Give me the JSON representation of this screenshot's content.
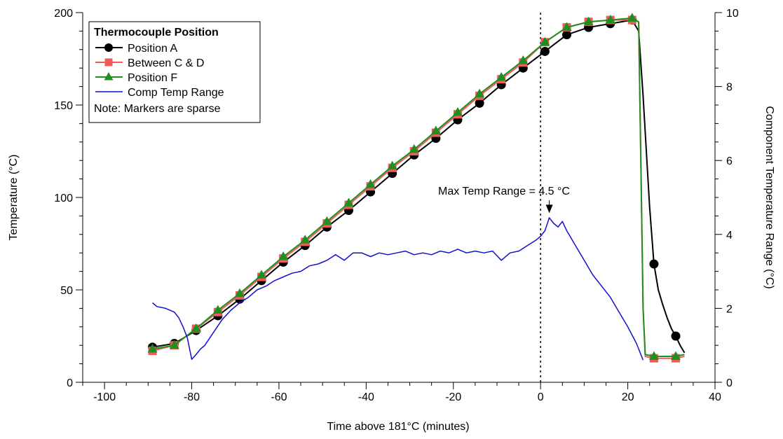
{
  "chart_data": {
    "type": "line",
    "xlabel": "Time above 181°C (minutes)",
    "ylabel": "Temperature (°C)",
    "y2label": "Component Temperature Range (°C)",
    "xlim": [
      -105,
      40
    ],
    "ylim": [
      0,
      200
    ],
    "y2lim": [
      0,
      10
    ],
    "x_ticks": [
      -100,
      -80,
      -60,
      -40,
      -20,
      0,
      20,
      40
    ],
    "y_ticks": [
      0,
      50,
      100,
      150,
      200
    ],
    "y2_ticks": [
      0,
      2,
      4,
      6,
      8,
      10
    ],
    "grid": false,
    "legend": {
      "title": "Thermocouple Position",
      "note": "Note: Markers are sparse",
      "placement": "top-left"
    },
    "vertical_line": {
      "x": 0,
      "style": "dotted"
    },
    "annotation": {
      "text": "Max Temp Range = 4.5 °C",
      "x": 2,
      "y2": 4.5
    },
    "series": [
      {
        "name": "Position A",
        "axis": "left",
        "color": "#000000",
        "marker": "circle",
        "x": [
          -89,
          -84,
          -79,
          -74,
          -69,
          -64,
          -59,
          -54,
          -49,
          -44,
          -39,
          -34,
          -29,
          -24,
          -19,
          -14,
          -9,
          -4,
          1,
          6,
          11,
          16,
          21,
          22.5,
          23.5,
          25,
          26,
          27,
          28,
          29,
          30,
          31,
          32,
          33
        ],
        "y": [
          19,
          21,
          28,
          36,
          45,
          55,
          65,
          74,
          84,
          93,
          103,
          113,
          123,
          132,
          142,
          151,
          161,
          170,
          179,
          188,
          192,
          194,
          196,
          190,
          155,
          95,
          64,
          50,
          42,
          35,
          29,
          25,
          20,
          16
        ],
        "marker_x": [
          -89,
          -84,
          -79,
          -74,
          -69,
          -64,
          -59,
          -54,
          -49,
          -44,
          -39,
          -34,
          -29,
          -24,
          -19,
          -14,
          -9,
          -4,
          1,
          6,
          11,
          16,
          21,
          26,
          31
        ],
        "marker_y": [
          19,
          21,
          28,
          36,
          45,
          55,
          65,
          74,
          84,
          93,
          103,
          113,
          123,
          132,
          142,
          151,
          161,
          170,
          179,
          188,
          192,
          194,
          196,
          64,
          25
        ]
      },
      {
        "name": "Between C & D",
        "axis": "left",
        "color": "#f05a5a",
        "marker": "square",
        "x": [
          -89,
          -84,
          -79,
          -74,
          -69,
          -64,
          -59,
          -54,
          -49,
          -44,
          -39,
          -34,
          -29,
          -24,
          -19,
          -14,
          -9,
          -4,
          1,
          6,
          11,
          16,
          21,
          22.5,
          23,
          23.5,
          24,
          26,
          31,
          33
        ],
        "y": [
          17,
          20,
          29,
          38,
          47,
          57,
          67,
          76,
          86,
          96,
          106,
          116,
          125,
          135,
          145,
          155,
          164,
          173,
          184,
          192,
          195,
          196,
          196,
          195,
          120,
          40,
          14,
          13,
          13,
          14
        ],
        "marker_x": [
          -89,
          -84,
          -79,
          -74,
          -69,
          -64,
          -59,
          -54,
          -49,
          -44,
          -39,
          -34,
          -29,
          -24,
          -19,
          -14,
          -9,
          -4,
          1,
          6,
          11,
          16,
          21,
          26,
          31
        ],
        "marker_y": [
          17,
          20,
          29,
          38,
          47,
          57,
          67,
          76,
          86,
          96,
          106,
          116,
          125,
          135,
          145,
          155,
          164,
          173,
          184,
          192,
          195,
          196,
          196,
          13,
          13
        ]
      },
      {
        "name": "Position F",
        "axis": "left",
        "color": "#1f8f1f",
        "marker": "triangle",
        "x": [
          -89,
          -84,
          -79,
          -74,
          -69,
          -64,
          -59,
          -54,
          -49,
          -44,
          -39,
          -34,
          -29,
          -24,
          -19,
          -14,
          -9,
          -4,
          1,
          6,
          11,
          16,
          21,
          22.5,
          23,
          23.5,
          24,
          26,
          31,
          33
        ],
        "y": [
          18,
          20,
          29,
          39,
          48,
          58,
          68,
          77,
          87,
          97,
          107,
          117,
          126,
          136,
          146,
          156,
          165,
          174,
          184,
          192,
          195,
          196,
          197,
          195,
          120,
          40,
          15,
          14,
          14,
          15
        ],
        "marker_x": [
          -89,
          -84,
          -79,
          -74,
          -69,
          -64,
          -59,
          -54,
          -49,
          -44,
          -39,
          -34,
          -29,
          -24,
          -19,
          -14,
          -9,
          -4,
          1,
          6,
          11,
          16,
          21,
          26,
          31
        ],
        "marker_y": [
          18,
          20,
          29,
          39,
          48,
          58,
          68,
          77,
          87,
          97,
          107,
          117,
          126,
          136,
          146,
          156,
          165,
          174,
          184,
          192,
          195,
          196,
          197,
          14,
          14
        ]
      },
      {
        "name": "Comp Temp Range",
        "axis": "right",
        "color": "#1010d0",
        "marker": "none",
        "x": [
          -89,
          -88,
          -86,
          -84,
          -83,
          -82,
          -81,
          -80,
          -79,
          -78,
          -77,
          -75,
          -73,
          -71,
          -69,
          -67,
          -65,
          -63,
          -61,
          -59,
          -57,
          -55,
          -53,
          -51,
          -49,
          -47,
          -45,
          -43,
          -41,
          -39,
          -37,
          -35,
          -33,
          -31,
          -29,
          -27,
          -25,
          -23,
          -21,
          -19,
          -17,
          -15,
          -13,
          -11,
          -9,
          -7,
          -5,
          -3,
          -1,
          0,
          1,
          2,
          3,
          4,
          5,
          6,
          8,
          10,
          12,
          14,
          16,
          18,
          20,
          22,
          23.5
        ],
        "y": [
          2.15,
          2.05,
          2.0,
          1.9,
          1.75,
          1.5,
          1.2,
          0.62,
          0.75,
          0.9,
          1.0,
          1.35,
          1.7,
          1.95,
          2.15,
          2.3,
          2.5,
          2.6,
          2.75,
          2.85,
          2.95,
          3.0,
          3.15,
          3.2,
          3.3,
          3.45,
          3.3,
          3.5,
          3.5,
          3.4,
          3.5,
          3.45,
          3.5,
          3.55,
          3.45,
          3.5,
          3.45,
          3.55,
          3.5,
          3.6,
          3.5,
          3.55,
          3.5,
          3.55,
          3.3,
          3.5,
          3.55,
          3.7,
          3.85,
          3.95,
          4.1,
          4.45,
          4.3,
          4.2,
          4.35,
          4.1,
          3.7,
          3.3,
          2.9,
          2.6,
          2.3,
          1.9,
          1.5,
          1.05,
          0.6
        ]
      }
    ]
  }
}
